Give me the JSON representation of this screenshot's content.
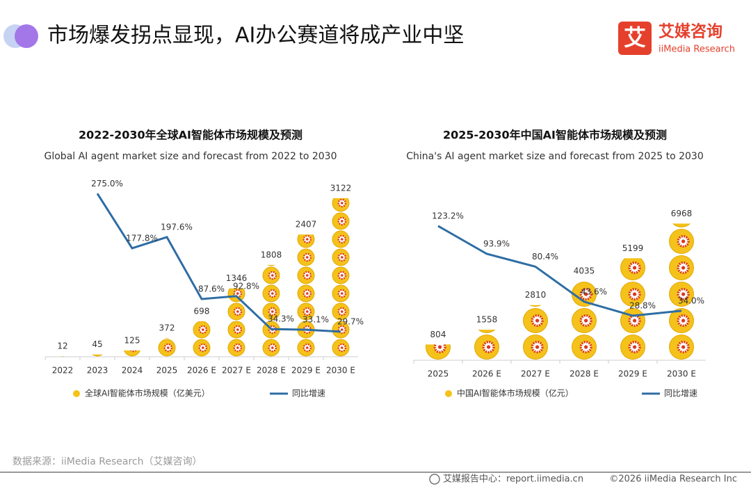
{
  "header": {
    "title": "市场爆发拐点显现，AI办公赛道将成产业中坚",
    "logo_mark": "艾",
    "logo_cn": "艾媒咨询",
    "logo_en": "iiMedia Research"
  },
  "chart_data": [
    {
      "type": "bar",
      "title": "2022-2030年全球AI智能体市场规模及预测",
      "subtitle": "Global AI agent market size and forecast from 2022 to 2030",
      "categories": [
        "2022",
        "2023",
        "2024",
        "2025",
        "2026 E",
        "2027 E",
        "2028 E",
        "2029 E",
        "2030 E"
      ],
      "series": [
        {
          "name": "全球AI智能体市场规模（亿美元）",
          "color": "#f5c21b",
          "values": [
            12,
            45,
            125,
            372,
            698,
            1346,
            1808,
            2407,
            3122
          ]
        },
        {
          "name": "同比增速",
          "type": "line",
          "axis": "y2",
          "color": "#2e6da4",
          "values": [
            null,
            275.0,
            177.8,
            197.6,
            87.6,
            92.8,
            34.3,
            33.1,
            29.7
          ],
          "value_labels": [
            null,
            "275.0%",
            "177.8%",
            "197.6%",
            "87.6%",
            "92.8%",
            "34.3%",
            "33.1%",
            "29.7%"
          ]
        }
      ],
      "ylim": [
        0,
        3600
      ],
      "y2lim": [
        -15,
        310
      ]
    },
    {
      "type": "bar",
      "title": "2025-2030年中国AI智能体市场规模及预测",
      "subtitle": "China's AI agent market size and forecast from 2025 to 2030",
      "categories": [
        "2025",
        "2026 E",
        "2027 E",
        "2028 E",
        "2029 E",
        "2030 E"
      ],
      "series": [
        {
          "name": "中国AI智能体市场规模（亿元）",
          "color": "#f5c21b",
          "values": [
            804,
            1558,
            2810,
            4035,
            5199,
            6968
          ]
        },
        {
          "name": "同比增速",
          "type": "line",
          "axis": "y2",
          "color": "#2e6da4",
          "values": [
            123.2,
            93.9,
            80.4,
            43.6,
            28.8,
            34.0
          ],
          "value_labels": [
            "123.2%",
            "93.9%",
            "80.4%",
            "43.6%",
            "28.8%",
            "34.0%"
          ]
        }
      ],
      "ylim": [
        0,
        9500
      ],
      "y2lim": [
        -18,
        178
      ]
    }
  ],
  "source": "数据来源：iiMedia Research（艾媒咨询）",
  "footer": {
    "left": "艾媒报告中心：report.iimedia.cn",
    "right": "©2026  iiMedia Research  Inc"
  }
}
